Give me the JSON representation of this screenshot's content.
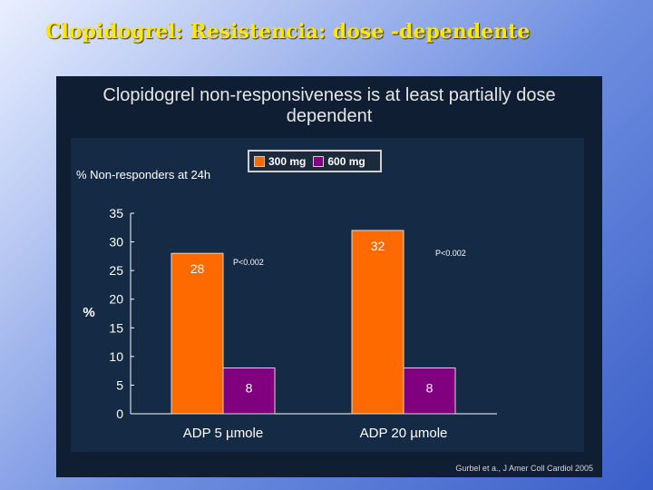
{
  "slide": {
    "title": "Clopidogrel: Resistencia: dose -dependente"
  },
  "panel": {
    "title_line1": "Clopidogrel non-responsiveness is at least partially dose",
    "title_line2": "dependent",
    "citation": "Gurbel et a., J Amer Coll Cardiol 2005"
  },
  "colors": {
    "series_300": "#ff6a00",
    "series_600": "#800080"
  },
  "chart_data": {
    "type": "bar",
    "title": "Clopidogrel non-responsiveness is at least partially dose dependent",
    "subtitle": "% Non-responders at 24h",
    "ylabel": "%",
    "xlabel": "",
    "ylim": [
      0,
      35
    ],
    "yticks": [
      0,
      5,
      10,
      15,
      20,
      25,
      30,
      35
    ],
    "categories": [
      "ADP 5 µmole",
      "ADP 20 µmole"
    ],
    "series": [
      {
        "name": "300 mg",
        "values": [
          28,
          32
        ]
      },
      {
        "name": "600 mg",
        "values": [
          8,
          8
        ]
      }
    ],
    "annotations": [
      "P<0.002",
      "P<0.002"
    ],
    "legend": "top-center"
  }
}
